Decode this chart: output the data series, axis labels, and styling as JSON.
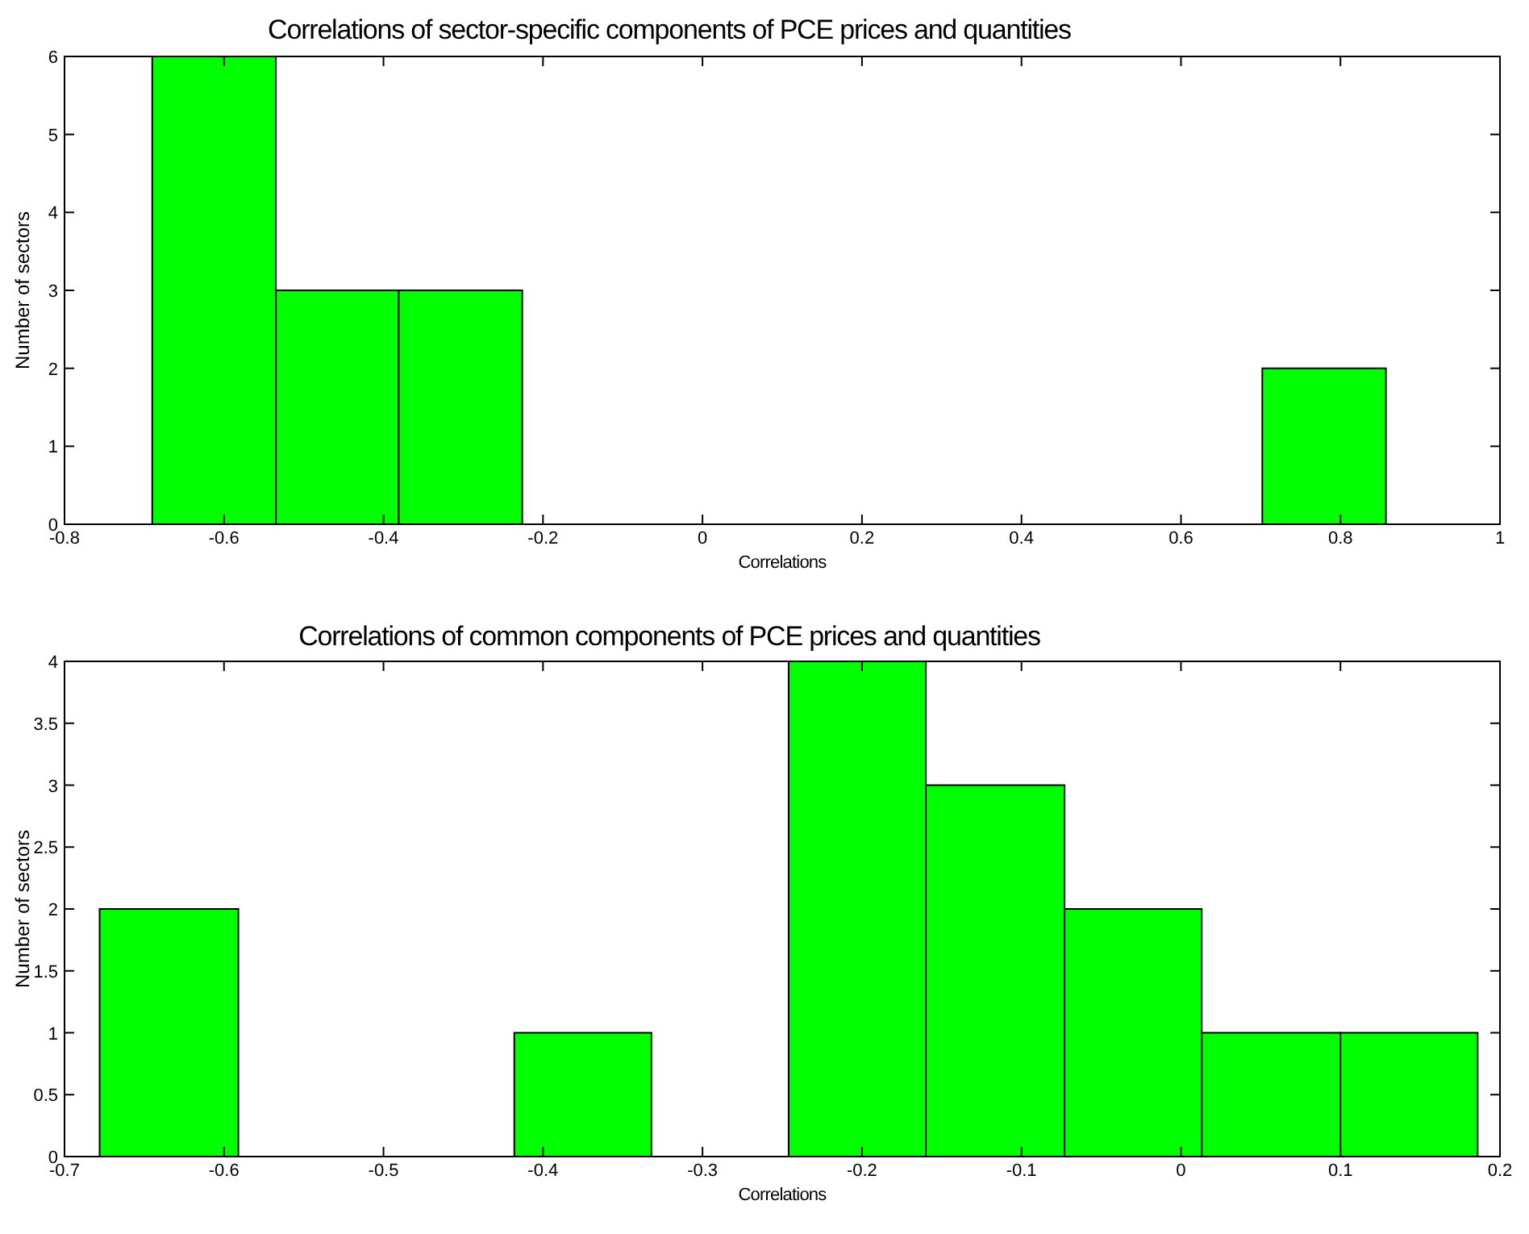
{
  "chart_data": [
    {
      "type": "histogram",
      "title": "Correlations of sector-specific components of PCE prices and quantities",
      "xlabel": "Correlations",
      "ylabel": "Number of sectors",
      "bins": [
        -0.69,
        -0.535,
        -0.381,
        -0.226,
        0.702,
        0.857
      ],
      "values": [
        6,
        3,
        3,
        0,
        2
      ],
      "color": "#00ff00",
      "xlim": [
        -0.8,
        1
      ],
      "xticks": [
        -0.8,
        -0.6,
        -0.4,
        -0.2,
        0,
        0.2,
        0.4,
        0.6,
        0.8,
        1
      ],
      "ylim": [
        0,
        6
      ],
      "yticks": [
        0,
        1,
        2,
        3,
        4,
        5,
        6
      ],
      "grid": false
    },
    {
      "type": "histogram",
      "title": "Correlations of common components of PCE prices and quantities",
      "xlabel": "Correlations",
      "ylabel": "Number of sectors",
      "bins": [
        -0.678,
        -0.591,
        -0.418,
        -0.332,
        -0.246,
        -0.16,
        -0.073,
        0.013,
        0.1,
        0.186
      ],
      "values": [
        2,
        0,
        1,
        0,
        4,
        3,
        2,
        1,
        1
      ],
      "color": "#00ff00",
      "xlim": [
        -0.7,
        0.2
      ],
      "xticks": [
        -0.7,
        -0.6,
        -0.5,
        -0.4,
        -0.3,
        -0.2,
        -0.1,
        0,
        0.1,
        0.2
      ],
      "ylim": [
        0,
        4
      ],
      "yticks": [
        0,
        0.5,
        1,
        1.5,
        2,
        2.5,
        3,
        3.5,
        4
      ],
      "grid": false
    }
  ]
}
